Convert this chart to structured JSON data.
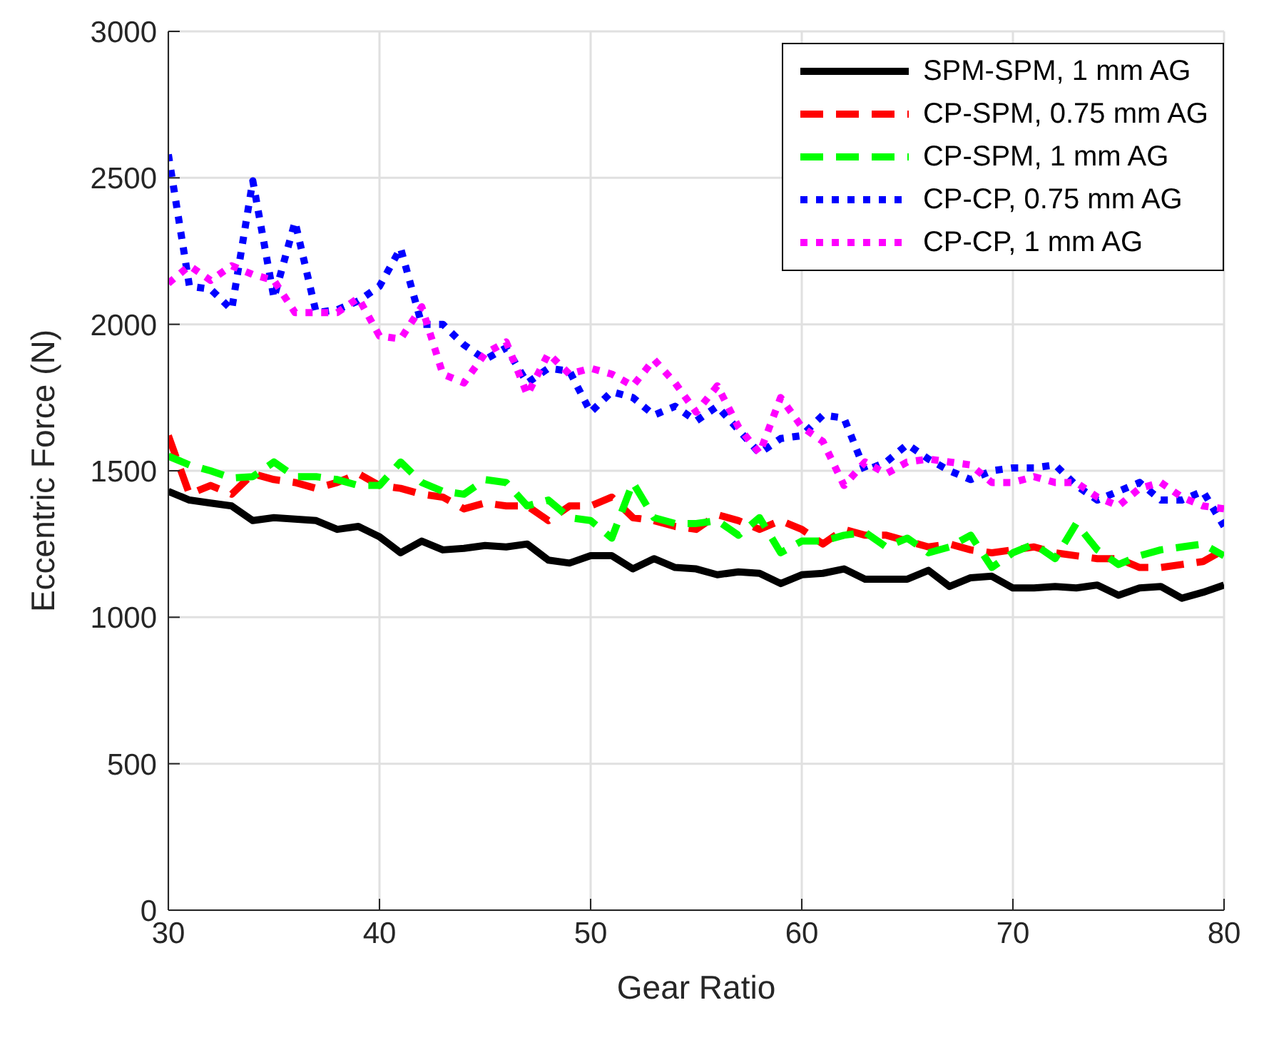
{
  "chart_data": {
    "type": "line",
    "xlabel": "Gear Ratio",
    "ylabel": "Eccentric Force (N)",
    "x": [
      30,
      31,
      32,
      33,
      34,
      35,
      36,
      37,
      38,
      39,
      40,
      41,
      42,
      43,
      44,
      45,
      46,
      47,
      48,
      49,
      50,
      51,
      52,
      53,
      54,
      55,
      56,
      57,
      58,
      59,
      60,
      61,
      62,
      63,
      64,
      65,
      66,
      67,
      68,
      69,
      70,
      71,
      72,
      73,
      74,
      75,
      76,
      77,
      78,
      79,
      80
    ],
    "xlim": [
      30,
      80
    ],
    "xticks": [
      30,
      40,
      50,
      60,
      70,
      80
    ],
    "ylim": [
      0,
      3000
    ],
    "yticks": [
      0,
      500,
      1000,
      1500,
      2000,
      2500,
      3000
    ],
    "grid": true,
    "legend": "top right",
    "marker": "none",
    "series": [
      {
        "name": "SPM-SPM, 1 mm AG",
        "color": "#000000",
        "line_style": "solid",
        "values": [
          1430,
          1400,
          1390,
          1380,
          1330,
          1340,
          1335,
          1330,
          1300,
          1310,
          1275,
          1220,
          1260,
          1230,
          1235,
          1245,
          1240,
          1250,
          1195,
          1185,
          1210,
          1210,
          1165,
          1200,
          1170,
          1165,
          1145,
          1155,
          1150,
          1115,
          1145,
          1150,
          1165,
          1130,
          1130,
          1130,
          1160,
          1105,
          1135,
          1140,
          1100,
          1100,
          1105,
          1100,
          1110,
          1075,
          1100,
          1105,
          1065,
          1085,
          1110
        ]
      },
      {
        "name": "CP-SPM, 0.75 mm AG",
        "color": "#ff0000",
        "line_style": "dashed",
        "values": [
          1620,
          1420,
          1450,
          1420,
          1490,
          1470,
          1460,
          1440,
          1460,
          1490,
          1450,
          1440,
          1420,
          1410,
          1370,
          1390,
          1380,
          1380,
          1330,
          1380,
          1380,
          1410,
          1340,
          1330,
          1310,
          1300,
          1350,
          1330,
          1300,
          1330,
          1300,
          1250,
          1300,
          1280,
          1280,
          1260,
          1240,
          1250,
          1230,
          1220,
          1230,
          1240,
          1220,
          1210,
          1200,
          1200,
          1170,
          1170,
          1180,
          1190,
          1230
        ]
      },
      {
        "name": "CP-SPM, 1 mm AG",
        "color": "#00ff00",
        "line_style": "dashed",
        "values": [
          1550,
          1520,
          1500,
          1475,
          1480,
          1530,
          1480,
          1480,
          1470,
          1450,
          1450,
          1530,
          1460,
          1430,
          1420,
          1470,
          1460,
          1380,
          1400,
          1340,
          1330,
          1270,
          1460,
          1340,
          1320,
          1320,
          1330,
          1280,
          1340,
          1220,
          1260,
          1260,
          1280,
          1290,
          1240,
          1270,
          1220,
          1240,
          1280,
          1170,
          1220,
          1250,
          1200,
          1320,
          1230,
          1180,
          1210,
          1230,
          1240,
          1250,
          1210
        ]
      },
      {
        "name": "CP-CP, 0.75 mm AG",
        "color": "#0000ff",
        "line_style": "dotted",
        "values": [
          2580,
          2130,
          2120,
          2050,
          2490,
          2090,
          2350,
          2040,
          2050,
          2080,
          2130,
          2260,
          2000,
          2000,
          1930,
          1880,
          1920,
          1800,
          1850,
          1840,
          1700,
          1770,
          1750,
          1690,
          1720,
          1670,
          1720,
          1640,
          1560,
          1610,
          1620,
          1690,
          1680,
          1500,
          1530,
          1590,
          1540,
          1500,
          1470,
          1500,
          1510,
          1510,
          1520,
          1450,
          1400,
          1430,
          1460,
          1400,
          1400,
          1430,
          1310
        ]
      },
      {
        "name": "CP-CP, 1 mm AG",
        "color": "#ff00ff",
        "line_style": "dotted",
        "values": [
          2140,
          2200,
          2150,
          2200,
          2170,
          2150,
          2040,
          2040,
          2040,
          2090,
          1960,
          1950,
          2060,
          1830,
          1800,
          1900,
          1940,
          1760,
          1900,
          1830,
          1850,
          1830,
          1790,
          1880,
          1800,
          1700,
          1790,
          1650,
          1560,
          1750,
          1650,
          1600,
          1450,
          1530,
          1490,
          1530,
          1540,
          1530,
          1520,
          1460,
          1460,
          1480,
          1460,
          1460,
          1410,
          1380,
          1440,
          1460,
          1410,
          1380,
          1370
        ]
      }
    ]
  }
}
